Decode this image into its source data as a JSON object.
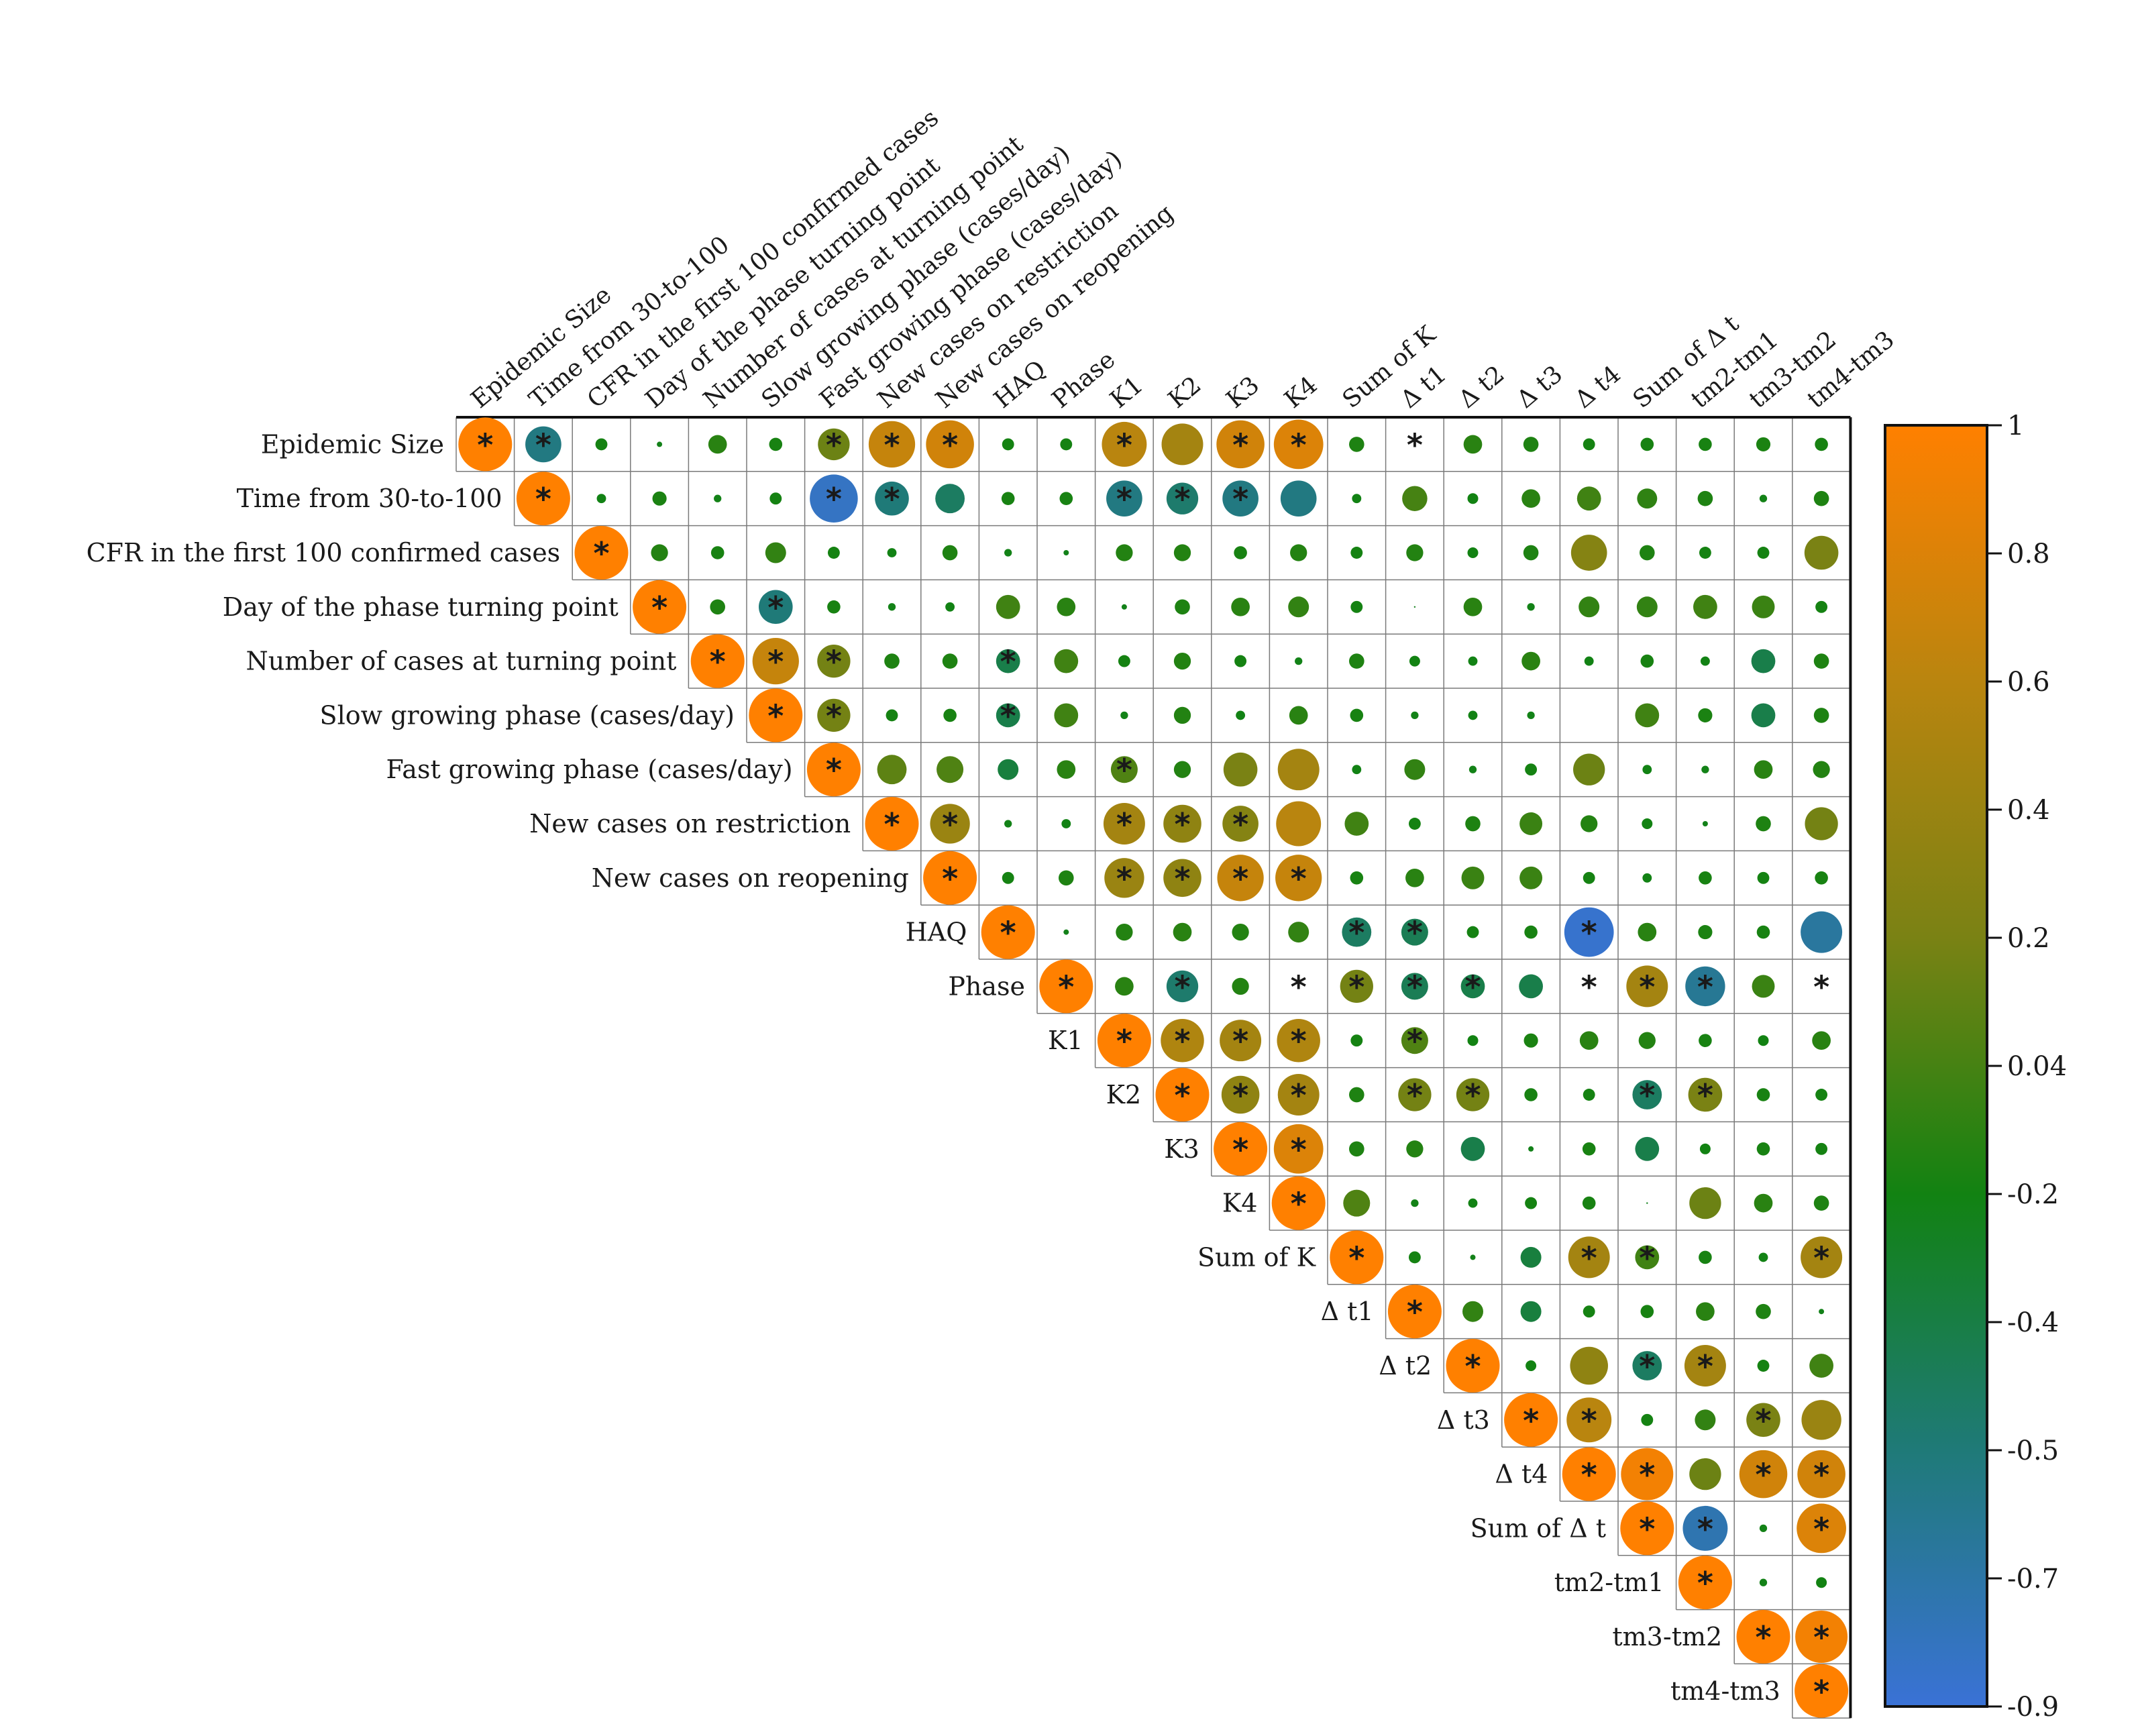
{
  "chart_data": {
    "type": "heatmap",
    "subtype": "correlation-matrix-upper-triangle",
    "variables": [
      "Epidemic Size",
      "Time from 30-to-100",
      "CFR in the first 100 confirmed cases",
      "Day of the phase turning point",
      "Number of cases at turning point",
      "Slow growing phase (cases/day)",
      "Fast growing phase (cases/day)",
      "New cases on restriction",
      "New cases on reopening",
      "HAQ",
      "Phase",
      "K1",
      "K2",
      "K3",
      "K4",
      "Sum of K",
      "Δ t1",
      "Δ t2",
      "Δ t3",
      "Δ t4",
      "Sum of Δ t",
      "tm2-tm1",
      "tm3-tm2",
      "tm4-tm3"
    ],
    "matrix": [
      [
        1,
        -0.45,
        0.05,
        0.01,
        0.12,
        0.06,
        0.35,
        0.75,
        0.8,
        0.05,
        0.05,
        0.7,
        0.6,
        0.8,
        0.85,
        0.08,
        0.0,
        0.12,
        0.08,
        0.05,
        0.06,
        0.06,
        0.07,
        0.06
      ],
      [
        null,
        1,
        0.03,
        0.07,
        0.02,
        0.05,
        -0.8,
        -0.4,
        -0.3,
        0.06,
        0.06,
        -0.45,
        -0.35,
        -0.45,
        -0.45,
        0.03,
        0.22,
        0.04,
        0.12,
        0.2,
        0.14,
        0.08,
        0.02,
        0.08
      ],
      [
        null,
        null,
        1,
        0.1,
        0.06,
        0.15,
        0.05,
        0.03,
        0.08,
        0.02,
        0.01,
        0.1,
        0.1,
        0.06,
        0.1,
        0.05,
        0.1,
        0.04,
        0.08,
        0.45,
        0.08,
        0.05,
        0.05,
        0.4
      ],
      [
        null,
        null,
        null,
        1,
        0.08,
        -0.4,
        0.06,
        0.02,
        0.03,
        0.2,
        0.12,
        0.01,
        0.08,
        0.12,
        0.15,
        0.05,
        0.0,
        0.12,
        0.02,
        0.15,
        0.15,
        0.2,
        0.18,
        0.05
      ],
      [
        null,
        null,
        null,
        null,
        1,
        0.75,
        0.38,
        0.08,
        0.08,
        -0.2,
        0.2,
        0.05,
        0.1,
        0.05,
        0.02,
        0.08,
        0.04,
        0.03,
        0.12,
        0.03,
        0.06,
        0.03,
        -0.2,
        0.08
      ],
      [
        null,
        null,
        null,
        null,
        null,
        1,
        0.38,
        0.05,
        0.06,
        -0.2,
        0.2,
        0.02,
        0.1,
        0.03,
        0.12,
        0.06,
        0.02,
        0.03,
        0.02,
        null,
        0.2,
        0.07,
        -0.2,
        0.08
      ],
      [
        null,
        null,
        null,
        null,
        null,
        null,
        1,
        0.3,
        0.25,
        -0.15,
        0.12,
        0.25,
        0.1,
        0.4,
        0.6,
        0.03,
        0.15,
        0.02,
        0.05,
        0.35,
        0.03,
        0.02,
        0.12,
        0.1
      ],
      [
        null,
        null,
        null,
        null,
        null,
        null,
        null,
        1,
        0.55,
        0.02,
        0.03,
        0.6,
        0.5,
        0.45,
        0.7,
        0.2,
        0.05,
        0.08,
        0.18,
        0.1,
        0.04,
        0.01,
        0.08,
        0.38
      ],
      [
        null,
        null,
        null,
        null,
        null,
        null,
        null,
        null,
        1,
        0.05,
        0.08,
        0.55,
        0.5,
        0.75,
        0.75,
        0.06,
        0.12,
        0.18,
        0.18,
        0.05,
        0.03,
        0.06,
        0.05,
        0.06
      ],
      [
        null,
        null,
        null,
        null,
        null,
        null,
        null,
        null,
        null,
        1,
        0.01,
        0.1,
        0.12,
        0.1,
        0.15,
        -0.3,
        -0.25,
        0.05,
        0.06,
        -0.85,
        0.12,
        0.07,
        0.06,
        -0.6
      ],
      [
        null,
        null,
        null,
        null,
        null,
        null,
        null,
        null,
        null,
        null,
        1,
        0.12,
        -0.35,
        0.1,
        0.0,
        0.38,
        -0.25,
        -0.2,
        -0.2,
        0.0,
        0.6,
        -0.55,
        0.18,
        0.0
      ],
      [
        null,
        null,
        null,
        null,
        null,
        null,
        null,
        null,
        null,
        null,
        null,
        1,
        0.65,
        0.6,
        0.65,
        0.05,
        0.25,
        0.04,
        0.07,
        0.12,
        0.1,
        0.06,
        0.04,
        0.12
      ],
      [
        null,
        null,
        null,
        null,
        null,
        null,
        null,
        null,
        null,
        null,
        null,
        null,
        1,
        0.5,
        0.6,
        0.08,
        0.38,
        0.38,
        0.06,
        0.05,
        -0.3,
        0.4,
        0.06,
        0.05
      ],
      [
        null,
        null,
        null,
        null,
        null,
        null,
        null,
        null,
        null,
        null,
        null,
        null,
        null,
        1,
        0.85,
        0.08,
        0.1,
        -0.2,
        0.01,
        0.06,
        -0.2,
        0.04,
        0.06,
        0.05
      ],
      [
        null,
        null,
        null,
        null,
        null,
        null,
        null,
        null,
        null,
        null,
        null,
        null,
        null,
        null,
        1,
        0.25,
        0.02,
        0.03,
        0.05,
        0.06,
        0.0,
        0.35,
        0.12,
        0.08
      ],
      [
        null,
        null,
        null,
        null,
        null,
        null,
        null,
        null,
        null,
        null,
        null,
        null,
        null,
        null,
        null,
        1,
        0.05,
        0.01,
        -0.15,
        0.6,
        0.2,
        0.06,
        0.03,
        0.6
      ],
      [
        null,
        null,
        null,
        null,
        null,
        null,
        null,
        null,
        null,
        null,
        null,
        null,
        null,
        null,
        null,
        null,
        1,
        0.15,
        -0.15,
        0.05,
        0.06,
        0.12,
        0.08,
        0.01
      ],
      [
        null,
        null,
        null,
        null,
        null,
        null,
        null,
        null,
        null,
        null,
        null,
        null,
        null,
        null,
        null,
        null,
        null,
        1,
        0.04,
        0.5,
        -0.3,
        0.6,
        0.05,
        0.2
      ],
      [
        null,
        null,
        null,
        null,
        null,
        null,
        null,
        null,
        null,
        null,
        null,
        null,
        null,
        null,
        null,
        null,
        null,
        null,
        1,
        0.7,
        0.05,
        0.15,
        0.4,
        0.55
      ],
      [
        null,
        null,
        null,
        null,
        null,
        null,
        null,
        null,
        null,
        null,
        null,
        null,
        null,
        null,
        null,
        null,
        null,
        null,
        null,
        1,
        0.95,
        0.35,
        0.8,
        0.8
      ],
      [
        null,
        null,
        null,
        null,
        null,
        null,
        null,
        null,
        null,
        null,
        null,
        null,
        null,
        null,
        null,
        null,
        null,
        null,
        null,
        null,
        1,
        -0.7,
        0.02,
        0.85
      ],
      [
        null,
        null,
        null,
        null,
        null,
        null,
        null,
        null,
        null,
        null,
        null,
        null,
        null,
        null,
        null,
        null,
        null,
        null,
        null,
        null,
        null,
        1,
        0.02,
        0.04
      ],
      [
        null,
        null,
        null,
        null,
        null,
        null,
        null,
        null,
        null,
        null,
        null,
        null,
        null,
        null,
        null,
        null,
        null,
        null,
        null,
        null,
        null,
        null,
        1,
        0.95
      ],
      [
        null,
        null,
        null,
        null,
        null,
        null,
        null,
        null,
        null,
        null,
        null,
        null,
        null,
        null,
        null,
        null,
        null,
        null,
        null,
        null,
        null,
        null,
        null,
        1
      ]
    ],
    "significant": [
      [
        0,
        0
      ],
      [
        0,
        1
      ],
      [
        0,
        6
      ],
      [
        0,
        7
      ],
      [
        0,
        8
      ],
      [
        0,
        11
      ],
      [
        0,
        13
      ],
      [
        0,
        14
      ],
      [
        0,
        16
      ],
      [
        1,
        1
      ],
      [
        1,
        6
      ],
      [
        1,
        7
      ],
      [
        1,
        11
      ],
      [
        1,
        12
      ],
      [
        1,
        13
      ],
      [
        2,
        2
      ],
      [
        3,
        3
      ],
      [
        3,
        5
      ],
      [
        4,
        4
      ],
      [
        4,
        5
      ],
      [
        4,
        6
      ],
      [
        4,
        9
      ],
      [
        5,
        5
      ],
      [
        5,
        6
      ],
      [
        5,
        9
      ],
      [
        6,
        6
      ],
      [
        6,
        11
      ],
      [
        7,
        7
      ],
      [
        7,
        8
      ],
      [
        7,
        11
      ],
      [
        7,
        12
      ],
      [
        7,
        13
      ],
      [
        8,
        8
      ],
      [
        8,
        11
      ],
      [
        8,
        12
      ],
      [
        8,
        13
      ],
      [
        8,
        14
      ],
      [
        9,
        9
      ],
      [
        9,
        15
      ],
      [
        9,
        16
      ],
      [
        9,
        19
      ],
      [
        10,
        10
      ],
      [
        10,
        12
      ],
      [
        10,
        14
      ],
      [
        10,
        15
      ],
      [
        10,
        16
      ],
      [
        10,
        17
      ],
      [
        10,
        19
      ],
      [
        10,
        20
      ],
      [
        10,
        21
      ],
      [
        10,
        23
      ],
      [
        11,
        11
      ],
      [
        11,
        12
      ],
      [
        11,
        13
      ],
      [
        11,
        14
      ],
      [
        11,
        16
      ],
      [
        12,
        12
      ],
      [
        12,
        13
      ],
      [
        12,
        14
      ],
      [
        12,
        16
      ],
      [
        12,
        17
      ],
      [
        12,
        20
      ],
      [
        12,
        21
      ],
      [
        13,
        13
      ],
      [
        13,
        14
      ],
      [
        14,
        14
      ],
      [
        15,
        15
      ],
      [
        15,
        19
      ],
      [
        15,
        20
      ],
      [
        15,
        23
      ],
      [
        16,
        16
      ],
      [
        17,
        17
      ],
      [
        17,
        20
      ],
      [
        17,
        21
      ],
      [
        18,
        18
      ],
      [
        18,
        19
      ],
      [
        18,
        22
      ],
      [
        19,
        19
      ],
      [
        19,
        20
      ],
      [
        19,
        22
      ],
      [
        19,
        23
      ],
      [
        20,
        20
      ],
      [
        20,
        21
      ],
      [
        20,
        23
      ],
      [
        21,
        21
      ],
      [
        22,
        22
      ],
      [
        22,
        23
      ],
      [
        23,
        23
      ]
    ],
    "colorbar": {
      "ticks": [
        "1",
        "0.8",
        "0.6",
        "0.4",
        "0.2",
        "0.04",
        "-0.2",
        "-0.4",
        "-0.5",
        "-0.7",
        "-0.9"
      ],
      "colors": [
        "#ff8000",
        "#b9850f",
        "#7a8214",
        "#128212",
        "#1f7a78",
        "#3a72d6"
      ]
    },
    "title": "",
    "xlabel": "",
    "ylabel": ""
  }
}
